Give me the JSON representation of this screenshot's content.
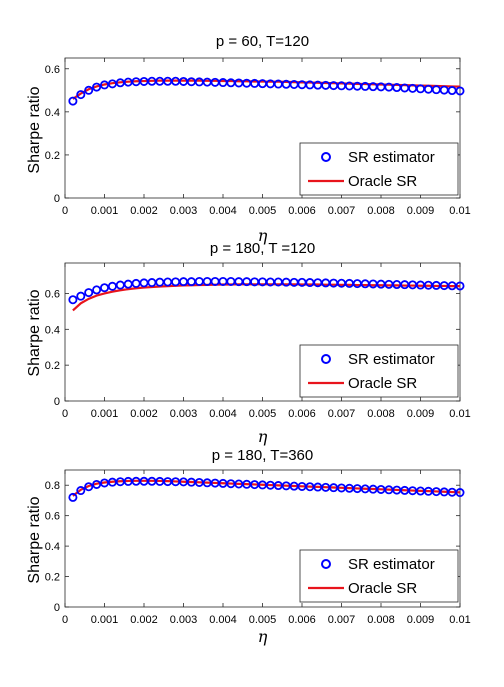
{
  "colors": {
    "estimator": "#0000ff",
    "oracle": "#e8141c",
    "axis": "#262626"
  },
  "x_tick_labels": [
    "0",
    "0.001",
    "0.002",
    "0.003",
    "0.004",
    "0.005",
    "0.006",
    "0.007",
    "0.008",
    "0.009",
    "0.01"
  ],
  "chart_data": [
    {
      "type": "line",
      "title": "p = 60, T=120",
      "xlabel": "η",
      "ylabel": "Sharpe ratio",
      "xlim": [
        0,
        0.01
      ],
      "ylim": [
        0,
        0.65
      ],
      "y_ticks": [
        0,
        0.2,
        0.4,
        0.6
      ],
      "y_tick_labels": [
        "0",
        "0.2",
        "0.4",
        "0.6"
      ],
      "legend_position": "bottom-right",
      "eta": [
        0.0002,
        0.0004,
        0.0006,
        0.0008,
        0.001,
        0.0012,
        0.0014,
        0.0016,
        0.0018,
        0.002,
        0.0022,
        0.0024,
        0.0026,
        0.0028,
        0.003,
        0.0032,
        0.0034,
        0.0036,
        0.0038,
        0.004,
        0.0042,
        0.0044,
        0.0046,
        0.0048,
        0.005,
        0.0052,
        0.0054,
        0.0056,
        0.0058,
        0.006,
        0.0062,
        0.0064,
        0.0066,
        0.0068,
        0.007,
        0.0072,
        0.0074,
        0.0076,
        0.0078,
        0.008,
        0.0082,
        0.0084,
        0.0086,
        0.0088,
        0.009,
        0.0092,
        0.0094,
        0.0096,
        0.0098,
        0.01
      ],
      "series": [
        {
          "name": "SR estimator",
          "style": "circles",
          "values": [
            0.45,
            0.48,
            0.5,
            0.515,
            0.525,
            0.53,
            0.535,
            0.538,
            0.54,
            0.541,
            0.542,
            0.542,
            0.542,
            0.542,
            0.541,
            0.54,
            0.539,
            0.538,
            0.537,
            0.536,
            0.535,
            0.534,
            0.533,
            0.532,
            0.531,
            0.53,
            0.529,
            0.528,
            0.527,
            0.526,
            0.525,
            0.524,
            0.523,
            0.522,
            0.521,
            0.52,
            0.519,
            0.518,
            0.517,
            0.516,
            0.515,
            0.513,
            0.511,
            0.509,
            0.507,
            0.505,
            0.503,
            0.501,
            0.499,
            0.497
          ]
        },
        {
          "name": "Oracle SR",
          "style": "line",
          "values": [
            0.46,
            0.485,
            0.505,
            0.518,
            0.527,
            0.533,
            0.537,
            0.54,
            0.542,
            0.543,
            0.544,
            0.545,
            0.545,
            0.545,
            0.545,
            0.545,
            0.545,
            0.544,
            0.544,
            0.543,
            0.543,
            0.542,
            0.542,
            0.541,
            0.541,
            0.54,
            0.54,
            0.539,
            0.538,
            0.537,
            0.536,
            0.535,
            0.534,
            0.533,
            0.532,
            0.531,
            0.53,
            0.529,
            0.528,
            0.527,
            0.526,
            0.525,
            0.524,
            0.523,
            0.522,
            0.521,
            0.52,
            0.519,
            0.518,
            0.517
          ]
        }
      ]
    },
    {
      "type": "line",
      "title": "p = 180, T =120",
      "xlabel": "η",
      "ylabel": "Sharpe ratio",
      "xlim": [
        0,
        0.01
      ],
      "ylim": [
        0,
        0.77
      ],
      "y_ticks": [
        0,
        0.2,
        0.4,
        0.6
      ],
      "y_tick_labels": [
        "0",
        "0.2",
        "0.4",
        "0.6"
      ],
      "legend_position": "bottom-right",
      "eta": [
        0.0002,
        0.0004,
        0.0006,
        0.0008,
        0.001,
        0.0012,
        0.0014,
        0.0016,
        0.0018,
        0.002,
        0.0022,
        0.0024,
        0.0026,
        0.0028,
        0.003,
        0.0032,
        0.0034,
        0.0036,
        0.0038,
        0.004,
        0.0042,
        0.0044,
        0.0046,
        0.0048,
        0.005,
        0.0052,
        0.0054,
        0.0056,
        0.0058,
        0.006,
        0.0062,
        0.0064,
        0.0066,
        0.0068,
        0.007,
        0.0072,
        0.0074,
        0.0076,
        0.0078,
        0.008,
        0.0082,
        0.0084,
        0.0086,
        0.0088,
        0.009,
        0.0092,
        0.0094,
        0.0096,
        0.0098,
        0.01
      ],
      "series": [
        {
          "name": "SR estimator",
          "style": "circles",
          "values": [
            0.565,
            0.585,
            0.605,
            0.62,
            0.632,
            0.64,
            0.647,
            0.652,
            0.656,
            0.659,
            0.661,
            0.663,
            0.664,
            0.665,
            0.666,
            0.666,
            0.667,
            0.667,
            0.667,
            0.667,
            0.667,
            0.666,
            0.666,
            0.665,
            0.665,
            0.664,
            0.664,
            0.663,
            0.662,
            0.662,
            0.661,
            0.66,
            0.659,
            0.658,
            0.657,
            0.656,
            0.655,
            0.654,
            0.653,
            0.652,
            0.651,
            0.65,
            0.649,
            0.648,
            0.647,
            0.646,
            0.645,
            0.644,
            0.643,
            0.642
          ]
        },
        {
          "name": "Oracle SR",
          "style": "line",
          "values": [
            0.505,
            0.545,
            0.57,
            0.588,
            0.6,
            0.61,
            0.618,
            0.624,
            0.629,
            0.633,
            0.636,
            0.639,
            0.641,
            0.643,
            0.645,
            0.646,
            0.647,
            0.648,
            0.649,
            0.65,
            0.65,
            0.651,
            0.651,
            0.651,
            0.651,
            0.651,
            0.651,
            0.651,
            0.651,
            0.65,
            0.65,
            0.65,
            0.649,
            0.649,
            0.648,
            0.648,
            0.647,
            0.647,
            0.646,
            0.646,
            0.645,
            0.645,
            0.644,
            0.644,
            0.643,
            0.643,
            0.642,
            0.642,
            0.641,
            0.641
          ]
        }
      ]
    },
    {
      "type": "line",
      "title": "p = 180, T=360",
      "xlabel": "η",
      "ylabel": "Sharpe ratio",
      "xlim": [
        0,
        0.01
      ],
      "ylim": [
        0,
        0.9
      ],
      "y_ticks": [
        0,
        0.2,
        0.4,
        0.6,
        0.8
      ],
      "y_tick_labels": [
        "0",
        "0.2",
        "0.4",
        "0.6",
        "0.8"
      ],
      "legend_position": "bottom-right",
      "eta": [
        0.0002,
        0.0004,
        0.0006,
        0.0008,
        0.001,
        0.0012,
        0.0014,
        0.0016,
        0.0018,
        0.002,
        0.0022,
        0.0024,
        0.0026,
        0.0028,
        0.003,
        0.0032,
        0.0034,
        0.0036,
        0.0038,
        0.004,
        0.0042,
        0.0044,
        0.0046,
        0.0048,
        0.005,
        0.0052,
        0.0054,
        0.0056,
        0.0058,
        0.006,
        0.0062,
        0.0064,
        0.0066,
        0.0068,
        0.007,
        0.0072,
        0.0074,
        0.0076,
        0.0078,
        0.008,
        0.0082,
        0.0084,
        0.0086,
        0.0088,
        0.009,
        0.0092,
        0.0094,
        0.0096,
        0.0098,
        0.01
      ],
      "series": [
        {
          "name": "SR estimator",
          "style": "circles",
          "values": [
            0.72,
            0.765,
            0.79,
            0.805,
            0.815,
            0.82,
            0.823,
            0.825,
            0.826,
            0.826,
            0.826,
            0.825,
            0.824,
            0.823,
            0.822,
            0.82,
            0.818,
            0.816,
            0.814,
            0.812,
            0.81,
            0.808,
            0.806,
            0.804,
            0.802,
            0.8,
            0.798,
            0.796,
            0.794,
            0.792,
            0.79,
            0.788,
            0.786,
            0.784,
            0.782,
            0.78,
            0.778,
            0.776,
            0.774,
            0.772,
            0.77,
            0.768,
            0.766,
            0.764,
            0.762,
            0.76,
            0.758,
            0.756,
            0.754,
            0.752
          ]
        },
        {
          "name": "Oracle SR",
          "style": "line",
          "values": [
            0.73,
            0.77,
            0.795,
            0.81,
            0.818,
            0.823,
            0.826,
            0.828,
            0.829,
            0.829,
            0.829,
            0.828,
            0.827,
            0.825,
            0.823,
            0.821,
            0.819,
            0.817,
            0.815,
            0.813,
            0.811,
            0.809,
            0.807,
            0.805,
            0.803,
            0.801,
            0.799,
            0.797,
            0.795,
            0.793,
            0.791,
            0.789,
            0.787,
            0.785,
            0.783,
            0.781,
            0.779,
            0.777,
            0.775,
            0.773,
            0.771,
            0.769,
            0.767,
            0.765,
            0.763,
            0.761,
            0.759,
            0.757,
            0.755,
            0.753
          ]
        }
      ]
    }
  ]
}
